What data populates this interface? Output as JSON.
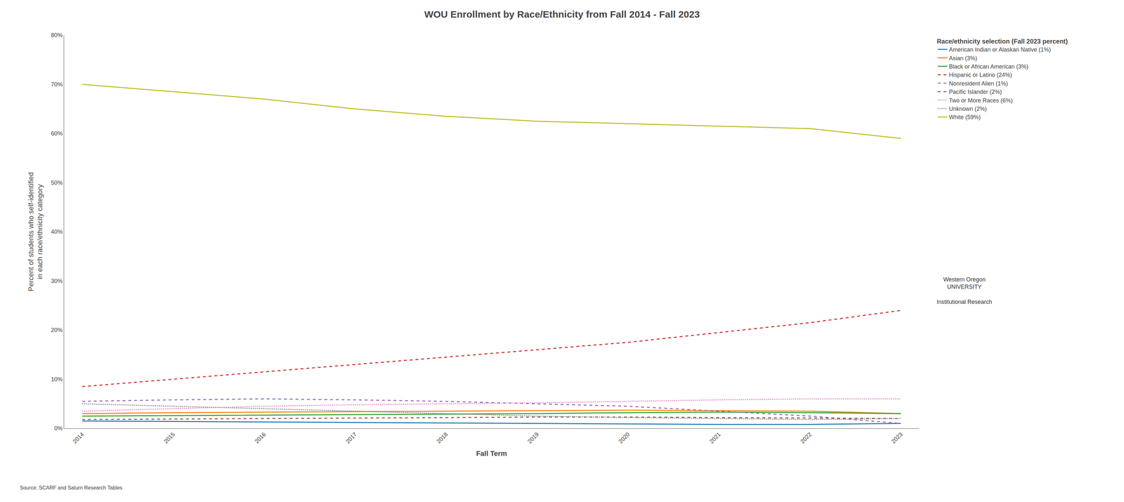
{
  "chart_data": {
    "type": "line",
    "title": "WOU Enrollment by Race/Ethnicity from Fall 2014 - Fall 2023",
    "x_label": "Fall Term",
    "y_label": "Percent of students who self-identified\nin each race/ethnicity category",
    "legend_title": "Race/ethnicity selection (Fall 2023 percent)",
    "annotations": [
      "Source: SCARF and Saturn Research Tables",
      "Western Oregon\nUNIVERSITY\n\nInstitutional Research"
    ],
    "x": [
      2014,
      2015,
      2016,
      2017,
      2018,
      2019,
      2020,
      2021,
      2022,
      2023
    ],
    "xlim": [
      2013.8,
      2023.2
    ],
    "xticks": [
      2014,
      2015,
      2016,
      2017,
      2018,
      2019,
      2020,
      2021,
      2022,
      2023
    ],
    "ylim": [
      0,
      80
    ],
    "yticks": [
      {
        "value": 0,
        "label": "0%"
      },
      {
        "value": 10,
        "label": "10%"
      },
      {
        "value": 20,
        "label": "20%"
      },
      {
        "value": 30,
        "label": "30%"
      },
      {
        "value": 40,
        "label": "40%"
      },
      {
        "value": 50,
        "label": "50%"
      },
      {
        "value": 60,
        "label": "60%"
      },
      {
        "value": 70,
        "label": "70%"
      },
      {
        "value": 80,
        "label": "80%"
      }
    ],
    "grid": false,
    "legend": "upper right",
    "series": [
      {
        "name": "American Indian or Alaskan Native (1%)",
        "line_style": "solid",
        "values": [
          1.5,
          1.4,
          1.3,
          1.2,
          1.1,
          1.0,
          0.9,
          0.8,
          0.8,
          1.0
        ]
      },
      {
        "name": "Asian (3%)",
        "line_style": "solid",
        "values": [
          3.0,
          3.2,
          3.3,
          3.4,
          3.5,
          3.6,
          3.7,
          3.6,
          3.5,
          3.0
        ]
      },
      {
        "name": "Black or African American (3%)",
        "line_style": "solid",
        "values": [
          2.5,
          2.6,
          2.7,
          2.8,
          2.9,
          3.0,
          3.2,
          3.3,
          3.2,
          3.0
        ]
      },
      {
        "name": "Hispanic or Latino (24%)",
        "line_style": "dashed",
        "values": [
          8.5,
          10.0,
          11.5,
          13.0,
          14.5,
          16.0,
          17.5,
          19.5,
          21.5,
          24.0
        ]
      },
      {
        "name": "Nonresident Alien (1%)",
        "line_style": "dashed",
        "values": [
          5.5,
          5.8,
          6.0,
          5.8,
          5.5,
          5.0,
          4.5,
          3.5,
          2.5,
          1.0
        ]
      },
      {
        "name": "Pacific Islander (2%)",
        "line_style": "dashed",
        "values": [
          1.8,
          1.9,
          2.0,
          2.1,
          2.2,
          2.3,
          2.3,
          2.2,
          2.1,
          2.0
        ]
      },
      {
        "name": "Two or More Races (6%)",
        "line_style": "dotted",
        "values": [
          3.5,
          4.0,
          4.5,
          4.8,
          5.0,
          5.2,
          5.5,
          5.8,
          6.0,
          6.0
        ]
      },
      {
        "name": "Unknown (2%)",
        "line_style": "dotted",
        "values": [
          5.0,
          4.5,
          4.0,
          3.5,
          3.0,
          2.5,
          2.2,
          2.0,
          1.8,
          2.0
        ]
      },
      {
        "name": "White (59%)",
        "line_style": "solid",
        "values": [
          70.0,
          68.5,
          67.0,
          65.0,
          63.5,
          62.5,
          62.0,
          61.5,
          61.0,
          59.0
        ]
      }
    ]
  }
}
